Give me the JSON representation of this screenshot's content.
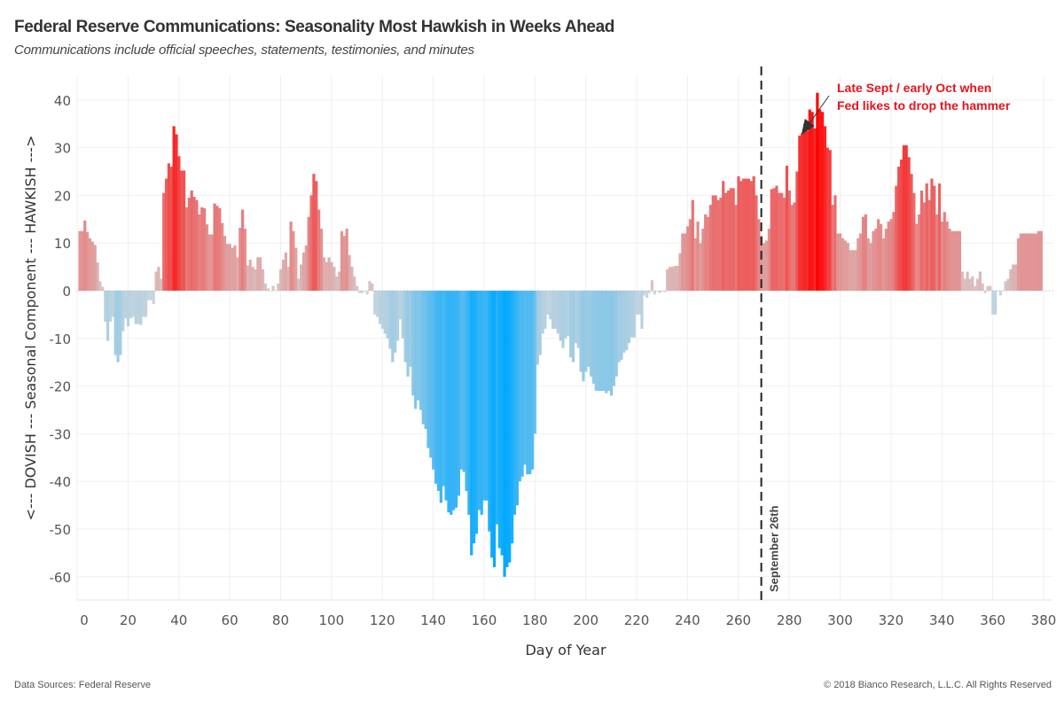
{
  "header": {
    "title": "Federal Reserve Communications: Seasonality Most Hawkish in Weeks Ahead",
    "subtitle": "Communications include official speeches, statements, testimonies, and minutes"
  },
  "footer": {
    "source": "Data Sources: Federal Reserve",
    "copyright": "© 2018 Bianco Research, L.L.C. All Rights Reserved"
  },
  "colors": {
    "hawkish_max": "#ff0000",
    "hawkish_min": "#d8c8c8",
    "dovish_max": "#00a8ff",
    "dovish_min": "#cdd6dc",
    "annotation": "#e8131b",
    "marker_line": "#222222"
  },
  "chart_data": {
    "type": "bar",
    "title": "Federal Reserve Communications: Seasonality Most Hawkish in Weeks Ahead",
    "xlabel": "Day of Year",
    "ylabel": "<--- DOVISH --- Seasonal Component --- HAWKISH --->",
    "xlim": [
      0,
      384
    ],
    "ylim": [
      -66,
      46
    ],
    "xticks": [
      0,
      20,
      40,
      60,
      80,
      100,
      120,
      140,
      160,
      180,
      200,
      220,
      240,
      260,
      280,
      300,
      320,
      340,
      360,
      380
    ],
    "yticks": [
      -60,
      -50,
      -40,
      -30,
      -20,
      -10,
      0,
      10,
      20,
      30,
      40
    ],
    "grid": true,
    "start_day": 1,
    "values": [
      12.5,
      12.5,
      14.7,
      12.3,
      11,
      10.3,
      9.6,
      5.9,
      2,
      0.8,
      -6.5,
      -10.5,
      -6.5,
      -5.5,
      -13.5,
      -15,
      -13.5,
      -8.5,
      -5.8,
      -7.5,
      -5.8,
      -5.5,
      -7,
      -7,
      -7.2,
      -5.5,
      -5.5,
      -2,
      -2,
      -2.8,
      4,
      5,
      2.5,
      20.5,
      23.5,
      26.7,
      26,
      34.5,
      32.8,
      28.2,
      25.2,
      25.2,
      17.5,
      19.5,
      21,
      19.7,
      19,
      16,
      17.5,
      17.3,
      13.9,
      11.8,
      11.8,
      18.3,
      17.8,
      17.3,
      14.2,
      11.5,
      9.8,
      9.8,
      9,
      9.5,
      7,
      13.2,
      17,
      13,
      5.3,
      6.5,
      5,
      4.5,
      7,
      7,
      4.5,
      1.5,
      0.5,
      0,
      1,
      0,
      1.5,
      4.5,
      6.5,
      8,
      5,
      14.5,
      12.5,
      9,
      2.5,
      5.5,
      8,
      9.5,
      15.5,
      20,
      24.5,
      23,
      17,
      13,
      7,
      6,
      7,
      6,
      5,
      3,
      4,
      12.5,
      11.5,
      13,
      7.5,
      5,
      3,
      1,
      -0.5,
      -0.5,
      0,
      -0.8,
      2,
      1.5,
      -5,
      -5.5,
      -7,
      -8,
      -9,
      -10,
      -12.2,
      -15,
      -13,
      -10.5,
      -6,
      -10,
      -15,
      -18,
      -16,
      -22,
      -24.8,
      -23,
      -25,
      -28,
      -29,
      -33,
      -35,
      -37.5,
      -40.5,
      -42,
      -44.5,
      -41,
      -44,
      -46.5,
      -47,
      -46,
      -45.5,
      -43,
      -37.5,
      -38,
      -42,
      -47,
      -55.5,
      -53,
      -51,
      -46,
      -47,
      -44,
      -44,
      -50.5,
      -56,
      -58,
      -49,
      -54,
      -55.5,
      -60,
      -58,
      -57,
      -53,
      -47,
      -45,
      -40,
      -39,
      -36.5,
      -38.5,
      -38.5,
      -37.5,
      -30,
      -15.5,
      -13.5,
      -9,
      -8,
      -5,
      -6,
      -8,
      -8,
      -9,
      -10.5,
      -12,
      -10,
      -9.5,
      -14,
      -15,
      -11,
      -12,
      -17,
      -19,
      -17,
      -16,
      -18,
      -19.5,
      -21,
      -21,
      -21,
      -21,
      -21.5,
      -21,
      -22,
      -20,
      -18,
      -15,
      -14.5,
      -13,
      -12.5,
      -11,
      -9.8,
      -9.8,
      -5,
      -5,
      -8,
      -1,
      -1.5,
      -0.5,
      2.2,
      -0.8,
      0,
      -0.5,
      0,
      -0.3,
      4.5,
      5,
      5,
      5.2,
      5.2,
      7.8,
      12,
      12,
      13.5,
      15,
      19,
      11,
      14.5,
      10,
      13,
      16,
      15.5,
      18,
      20,
      20,
      19,
      19.5,
      23,
      20.5,
      21,
      21.5,
      21.5,
      18,
      24,
      23,
      23.5,
      23.5,
      23.5,
      23,
      24,
      20,
      15,
      11.5,
      10,
      10.5,
      13,
      21.3,
      21.5,
      22,
      20.5,
      20.5,
      19.5,
      26.2,
      21,
      18,
      18.5,
      25,
      32.5,
      33,
      35,
      33.5,
      38,
      37.5,
      34,
      41.5,
      38,
      37.5,
      34.5,
      30,
      29.5,
      18,
      20,
      12,
      12,
      11,
      10.5,
      10,
      8.5,
      8.5,
      8.5,
      11,
      12,
      15.5,
      16,
      11,
      10,
      12.5,
      13,
      15,
      14,
      11,
      13,
      14.5,
      15,
      16.5,
      22,
      26,
      27.5,
      30.5,
      30.5,
      28,
      24.5,
      20.5,
      14,
      16,
      21,
      18.5,
      22.5,
      19,
      23.5,
      22,
      16,
      22.5,
      14.5,
      16.5,
      14.5,
      13,
      12.5,
      12.5,
      12.5,
      12.5,
      4,
      2.5,
      4,
      2.5,
      3,
      1,
      2.5,
      4,
      1.5,
      -0.5,
      1,
      1,
      -5,
      -5,
      0,
      -1,
      0,
      2,
      2.5,
      4.5,
      5.5,
      5.5,
      11,
      12,
      12,
      12,
      12,
      12,
      12,
      12,
      12.5,
      12.5
    ],
    "annotations": [
      {
        "text_line1": "Late Sept / early Oct when",
        "text_line2": "Fed likes to drop the hammer",
        "points_to_day": 283
      },
      {
        "text": "September 26th",
        "day": 269,
        "style": "dashed vertical line"
      }
    ]
  }
}
